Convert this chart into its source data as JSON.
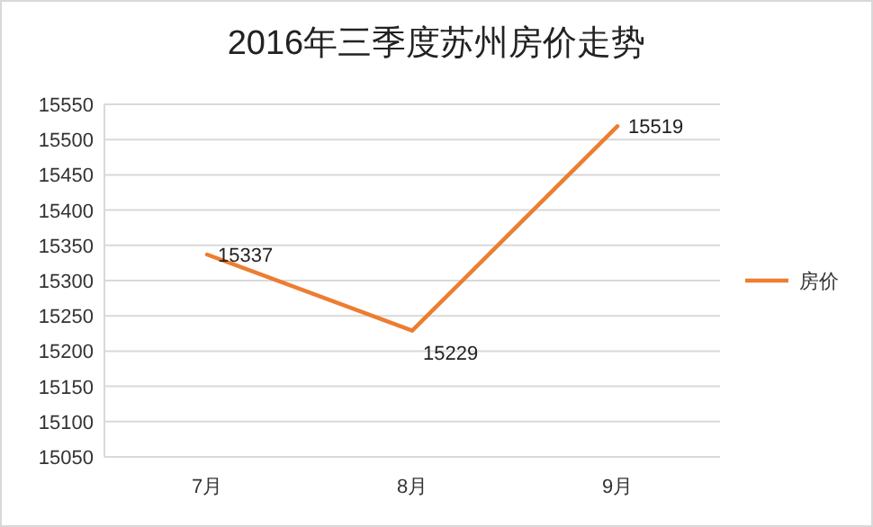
{
  "chart_data": {
    "type": "line",
    "title": "2016年三季度苏州房价走势",
    "categories": [
      "7月",
      "8月",
      "9月"
    ],
    "series": [
      {
        "name": "房价",
        "color": "#ed7d31",
        "values": [
          15337,
          15229,
          15519
        ]
      }
    ],
    "ylim": [
      15050,
      15550
    ],
    "yticks": [
      15050,
      15100,
      15150,
      15200,
      15250,
      15300,
      15350,
      15400,
      15450,
      15500,
      15550
    ],
    "grid": "y",
    "legend": "right",
    "data_labels": true,
    "marker": "none",
    "line_style": "solid"
  }
}
